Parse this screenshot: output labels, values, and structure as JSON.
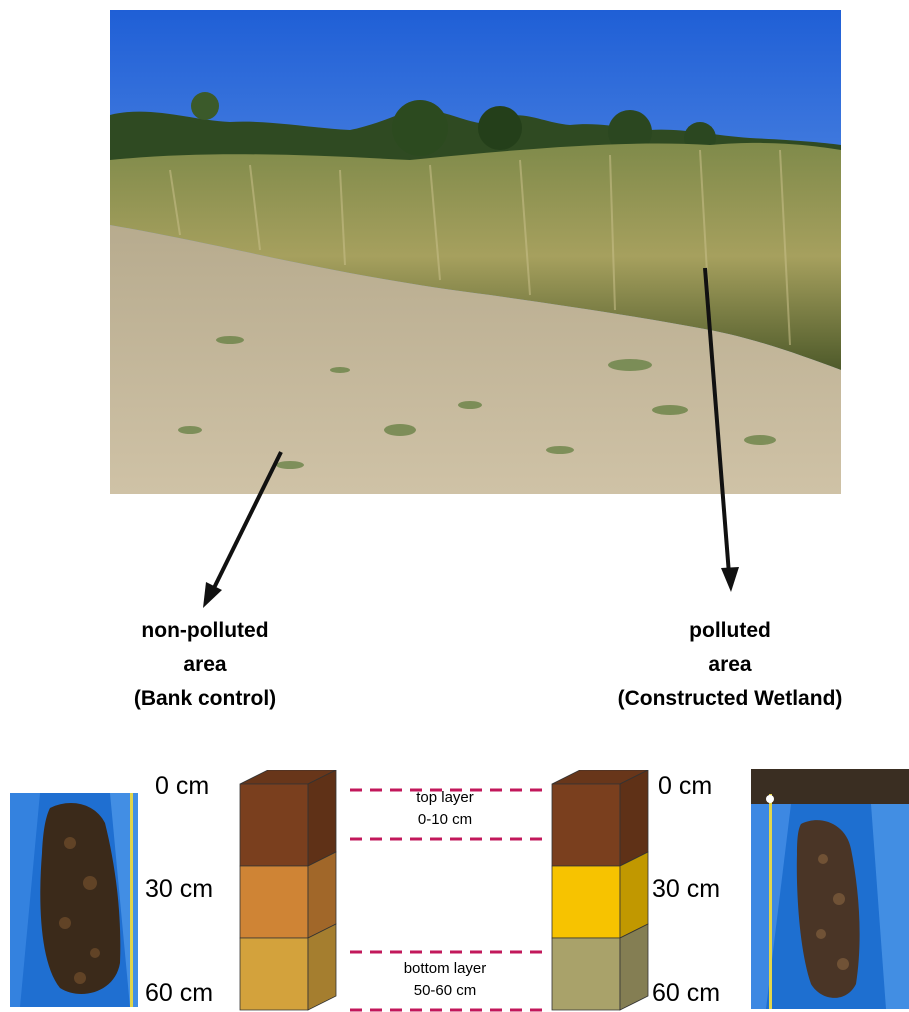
{
  "areas": {
    "left": {
      "line1": "non-polluted",
      "line2": "area",
      "line3": "(Bank control)"
    },
    "right": {
      "line1": "polluted",
      "line2": "area",
      "line3": "(Constructed Wetland)"
    }
  },
  "depths": {
    "d0": "0 cm",
    "d30": "30 cm",
    "d60": "60 cm"
  },
  "layers": {
    "top": {
      "name": "top layer",
      "range": "0-10 cm"
    },
    "bottom": {
      "name": "bottom layer",
      "range": "50-60 cm"
    }
  },
  "colors": {
    "left_top": "#7a3f1e",
    "left_mid": "#cf8435",
    "left_bottom": "#d3a23c",
    "right_top": "#7a3f1e",
    "right_mid": "#f7c300",
    "right_bottom": "#a9a26a",
    "dash": "#c2185b",
    "arrow": "#111111"
  }
}
